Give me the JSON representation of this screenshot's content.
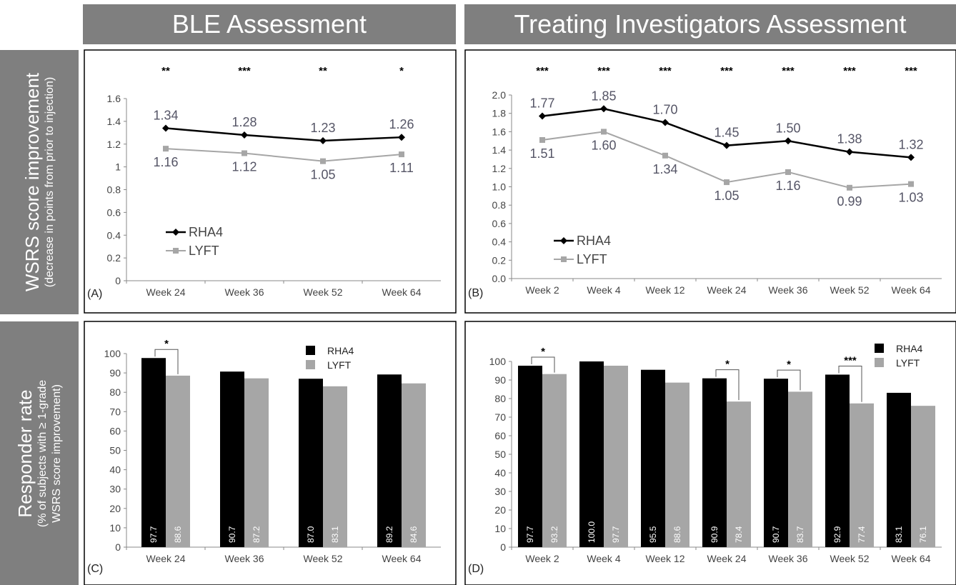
{
  "header": {
    "left_title": "BLE Assessment",
    "right_title": "Treating Investigators Assessment"
  },
  "side": {
    "top_main": "WSRS score improvement",
    "top_sub": "(decrease in points from prior to injection)",
    "bottom_main": "Responder rate",
    "bottom_sub1": "(% of subjects with ≥ 1-grade",
    "bottom_sub2": "WSRS score improvement)"
  },
  "colors": {
    "rha4": "#000000",
    "lyft": "#a6a6a6",
    "header": "#7f7f7f"
  },
  "chart_data": [
    {
      "id": "A",
      "panel_label": "(A)",
      "type": "line",
      "categories": [
        "Week 24",
        "Week 36",
        "Week 52",
        "Week 64"
      ],
      "ylim": [
        0,
        1.6
      ],
      "yticks": [
        "0",
        "0.2",
        "0.4",
        "0.6",
        "0.8",
        "1",
        "1.2",
        "1.4",
        "1.6"
      ],
      "significance": [
        "**",
        "***",
        "**",
        "*"
      ],
      "legend": [
        "RHA4",
        "LYFT"
      ],
      "series": [
        {
          "name": "RHA4",
          "values": [
            1.34,
            1.28,
            1.23,
            1.26
          ],
          "labels": [
            "1.34",
            "1.28",
            "1.23",
            "1.26"
          ]
        },
        {
          "name": "LYFT",
          "values": [
            1.16,
            1.12,
            1.05,
            1.11
          ],
          "labels": [
            "1.16",
            "1.12",
            "1.05",
            "1.11"
          ]
        }
      ]
    },
    {
      "id": "B",
      "panel_label": "(B)",
      "type": "line",
      "categories": [
        "Week 2",
        "Week 4",
        "Week 12",
        "Week 24",
        "Week 36",
        "Week 52",
        "Week 64"
      ],
      "ylim": [
        0,
        2.0
      ],
      "yticks": [
        "0.0",
        "0.2",
        "0.4",
        "0.6",
        "0.8",
        "1.0",
        "1.2",
        "1.4",
        "1.6",
        "1.8",
        "2.0"
      ],
      "significance": [
        "***",
        "***",
        "***",
        "***",
        "***",
        "***",
        "***"
      ],
      "legend": [
        "RHA4",
        "LYFT"
      ],
      "series": [
        {
          "name": "RHA4",
          "values": [
            1.77,
            1.85,
            1.7,
            1.45,
            1.5,
            1.38,
            1.32
          ],
          "labels": [
            "1.77",
            "1.85",
            "1.70",
            "1.45",
            "1.50",
            "1.38",
            "1.32"
          ]
        },
        {
          "name": "LYFT",
          "values": [
            1.51,
            1.6,
            1.34,
            1.05,
            1.16,
            0.99,
            1.03
          ],
          "labels": [
            "1.51",
            "1.60",
            "1.34",
            "1.05",
            "1.16",
            "0.99",
            "1.03"
          ]
        }
      ]
    },
    {
      "id": "C",
      "panel_label": "(C)",
      "type": "bar",
      "categories": [
        "Week 24",
        "Week 36",
        "Week 52",
        "Week 64"
      ],
      "ylim": [
        0,
        100
      ],
      "yticks": [
        "0",
        "10",
        "20",
        "30",
        "40",
        "50",
        "60",
        "70",
        "80",
        "90",
        "100"
      ],
      "significance": [
        "*",
        "",
        "",
        ""
      ],
      "legend": [
        "RHA4",
        "LYFT"
      ],
      "series": [
        {
          "name": "RHA4",
          "values": [
            97.7,
            90.7,
            87.0,
            89.2
          ],
          "labels": [
            "97.7",
            "90.7",
            "87.0",
            "89.2"
          ]
        },
        {
          "name": "LYFT",
          "values": [
            88.6,
            87.2,
            83.1,
            84.6
          ],
          "labels": [
            "88.6",
            "87.2",
            "83.1",
            "84.6"
          ]
        }
      ]
    },
    {
      "id": "D",
      "panel_label": "(D)",
      "type": "bar",
      "categories": [
        "Week 2",
        "Week 4",
        "Week 12",
        "Week 24",
        "Week 36",
        "Week 52",
        "Week 64"
      ],
      "ylim": [
        0,
        100
      ],
      "yticks": [
        "0",
        "10",
        "20",
        "30",
        "40",
        "50",
        "60",
        "70",
        "80",
        "90",
        "100"
      ],
      "significance": [
        "*",
        "",
        "",
        "*",
        "*",
        "***",
        ""
      ],
      "legend": [
        "RHA4",
        "LYFT"
      ],
      "series": [
        {
          "name": "RHA4",
          "values": [
            97.7,
            100.0,
            95.5,
            90.9,
            90.7,
            92.9,
            83.1
          ],
          "labels": [
            "97.7",
            "100.0",
            "95.5",
            "90.9",
            "90.7",
            "92.9",
            "83.1"
          ]
        },
        {
          "name": "LYFT",
          "values": [
            93.2,
            97.7,
            88.6,
            78.4,
            83.7,
            77.4,
            76.1
          ],
          "labels": [
            "93.2",
            "97.7",
            "88.6",
            "78.4",
            "83.7",
            "77.4",
            "76.1"
          ]
        }
      ]
    }
  ]
}
